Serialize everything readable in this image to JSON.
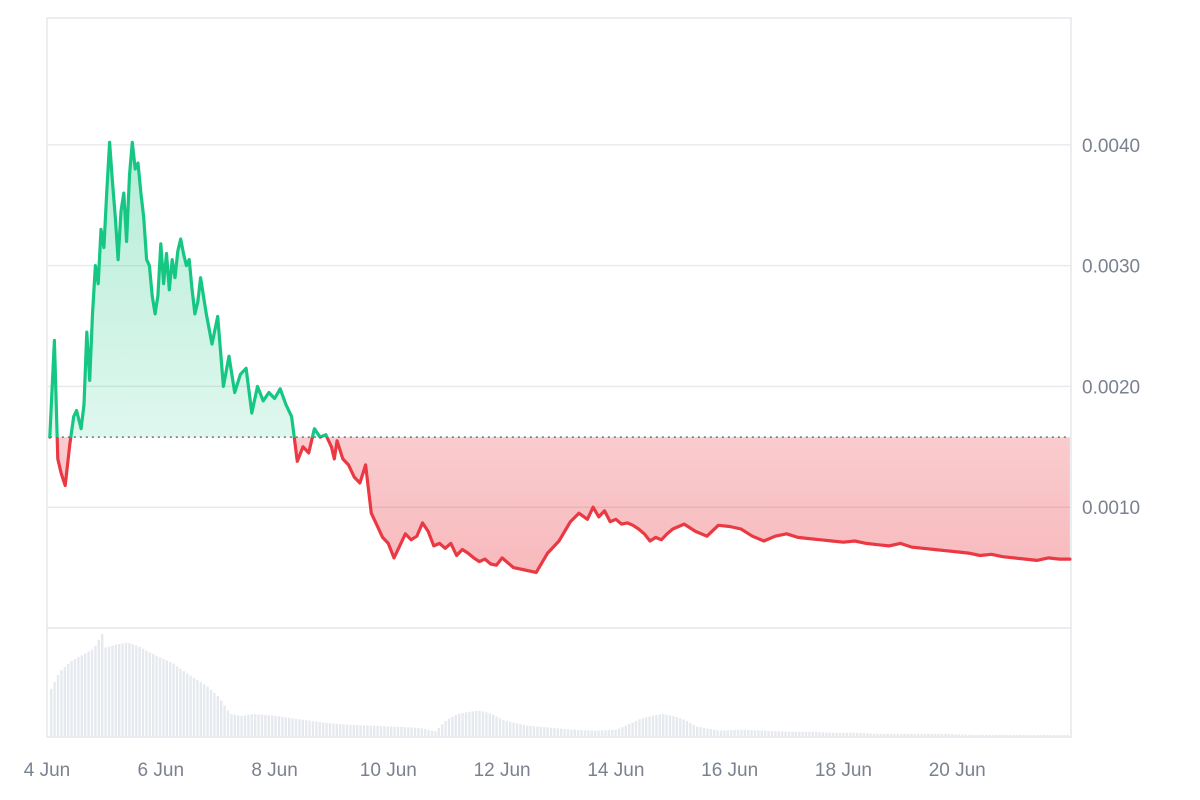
{
  "chart_data": {
    "type": "area",
    "baseline": 0.00158,
    "up_color": "#16c784",
    "down_color": "#ea3943",
    "ylim": [
      0,
      0.00505
    ],
    "y_ticks": [
      0.001,
      0.002,
      0.003,
      0.004
    ],
    "y_tick_labels": [
      "0.0010",
      "0.0020",
      "0.0030",
      "0.0040"
    ],
    "xlim": [
      4.0,
      22.0
    ],
    "x_ticks": [
      4,
      6,
      8,
      10,
      12,
      14,
      16,
      18,
      20
    ],
    "x_tick_labels": [
      "4 Jun",
      "6 Jun",
      "8 Jun",
      "10 Jun",
      "12 Jun",
      "14 Jun",
      "16 Jun",
      "18 Jun",
      "20 Jun"
    ],
    "price_series": {
      "x": [
        4.05,
        4.13,
        4.19,
        4.25,
        4.32,
        4.4,
        4.47,
        4.52,
        4.6,
        4.65,
        4.7,
        4.75,
        4.8,
        4.85,
        4.9,
        4.95,
        5.0,
        5.05,
        5.1,
        5.15,
        5.2,
        5.25,
        5.3,
        5.35,
        5.4,
        5.45,
        5.5,
        5.55,
        5.6,
        5.65,
        5.7,
        5.75,
        5.8,
        5.85,
        5.9,
        5.95,
        6.0,
        6.05,
        6.1,
        6.15,
        6.2,
        6.25,
        6.3,
        6.35,
        6.4,
        6.45,
        6.5,
        6.55,
        6.6,
        6.65,
        6.7,
        6.75,
        6.8,
        6.9,
        7.0,
        7.1,
        7.2,
        7.3,
        7.4,
        7.5,
        7.6,
        7.7,
        7.8,
        7.9,
        8.0,
        8.1,
        8.2,
        8.3,
        8.4,
        8.5,
        8.6,
        8.7,
        8.8,
        8.9,
        9.0,
        9.05,
        9.1,
        9.2,
        9.3,
        9.4,
        9.5,
        9.6,
        9.7,
        9.8,
        9.9,
        10.0,
        10.1,
        10.2,
        10.3,
        10.4,
        10.5,
        10.6,
        10.7,
        10.8,
        10.9,
        11.0,
        11.1,
        11.2,
        11.3,
        11.4,
        11.5,
        11.6,
        11.7,
        11.8,
        11.9,
        12.0,
        12.2,
        12.4,
        12.6,
        12.8,
        13.0,
        13.2,
        13.35,
        13.5,
        13.6,
        13.7,
        13.8,
        13.9,
        14.0,
        14.1,
        14.2,
        14.3,
        14.4,
        14.5,
        14.6,
        14.7,
        14.8,
        14.9,
        15.0,
        15.2,
        15.4,
        15.6,
        15.8,
        16.0,
        16.2,
        16.4,
        16.6,
        16.8,
        17.0,
        17.2,
        17.4,
        17.6,
        17.8,
        18.0,
        18.2,
        18.4,
        18.6,
        18.8,
        19.0,
        19.2,
        19.4,
        19.6,
        19.8,
        20.0,
        20.2,
        20.4,
        20.6,
        20.8,
        21.0,
        21.2,
        21.4,
        21.6,
        21.8,
        21.98
      ],
      "y": [
        0.00158,
        0.00238,
        0.0014,
        0.00128,
        0.00118,
        0.00152,
        0.00175,
        0.0018,
        0.00165,
        0.00185,
        0.00245,
        0.00205,
        0.0026,
        0.003,
        0.00285,
        0.0033,
        0.00315,
        0.0036,
        0.00402,
        0.0037,
        0.0034,
        0.00305,
        0.00345,
        0.0036,
        0.0032,
        0.00375,
        0.00402,
        0.0038,
        0.00385,
        0.0036,
        0.0034,
        0.00305,
        0.003,
        0.00275,
        0.0026,
        0.00275,
        0.00318,
        0.00285,
        0.0031,
        0.0028,
        0.00305,
        0.0029,
        0.00312,
        0.00322,
        0.0031,
        0.003,
        0.00305,
        0.0028,
        0.0026,
        0.0027,
        0.0029,
        0.00275,
        0.0026,
        0.00235,
        0.00258,
        0.002,
        0.00225,
        0.00195,
        0.0021,
        0.00215,
        0.00178,
        0.002,
        0.00188,
        0.00195,
        0.0019,
        0.00198,
        0.00185,
        0.00175,
        0.00138,
        0.0015,
        0.00145,
        0.00165,
        0.00158,
        0.0016,
        0.0015,
        0.0014,
        0.00155,
        0.0014,
        0.00135,
        0.00125,
        0.0012,
        0.00135,
        0.00095,
        0.00085,
        0.00075,
        0.0007,
        0.00058,
        0.00068,
        0.00078,
        0.00073,
        0.00076,
        0.00087,
        0.0008,
        0.00068,
        0.0007,
        0.00066,
        0.0007,
        0.0006,
        0.00065,
        0.00062,
        0.00058,
        0.00055,
        0.00057,
        0.00053,
        0.00052,
        0.00058,
        0.0005,
        0.00048,
        0.00046,
        0.00062,
        0.00072,
        0.00088,
        0.00095,
        0.0009,
        0.001,
        0.00092,
        0.00097,
        0.00088,
        0.0009,
        0.00086,
        0.00087,
        0.00085,
        0.00082,
        0.00078,
        0.00072,
        0.00075,
        0.00073,
        0.00078,
        0.00082,
        0.00086,
        0.0008,
        0.00076,
        0.00085,
        0.00084,
        0.00082,
        0.00076,
        0.00072,
        0.00076,
        0.00078,
        0.00075,
        0.00074,
        0.00073,
        0.00072,
        0.00071,
        0.00072,
        0.0007,
        0.00069,
        0.00068,
        0.0007,
        0.00067,
        0.00066,
        0.00065,
        0.00064,
        0.00063,
        0.00062,
        0.0006,
        0.00061,
        0.00059,
        0.00058,
        0.00057,
        0.00056,
        0.00058,
        0.00057,
        0.00057
      ]
    },
    "volume_series": {
      "x": [
        4.0,
        4.2,
        4.4,
        4.6,
        4.8,
        4.95,
        5.0,
        5.2,
        5.4,
        5.6,
        5.8,
        6.0,
        6.2,
        6.4,
        6.6,
        6.8,
        7.0,
        7.2,
        7.4,
        7.6,
        8.0,
        8.4,
        8.8,
        9.2,
        9.6,
        10.0,
        10.4,
        10.6,
        10.8,
        11.0,
        11.2,
        11.4,
        11.6,
        11.8,
        12.0,
        12.4,
        12.8,
        13.2,
        13.6,
        14.0,
        14.2,
        14.4,
        14.6,
        14.8,
        15.0,
        15.2,
        15.4,
        15.8,
        16.2,
        16.6,
        17.0,
        17.4,
        17.8,
        18.2,
        18.6,
        19.0,
        19.4,
        19.8,
        20.2,
        20.6,
        21.0,
        21.4,
        21.8,
        22.0
      ],
      "y": [
        40,
        62,
        72,
        78,
        84,
        98,
        85,
        88,
        90,
        86,
        80,
        75,
        70,
        62,
        55,
        48,
        38,
        22,
        20,
        22,
        20,
        17,
        14,
        12,
        11,
        10,
        9,
        8,
        5,
        16,
        22,
        24,
        25,
        22,
        16,
        11,
        9,
        7,
        6,
        7,
        12,
        17,
        20,
        22,
        20,
        16,
        10,
        6,
        7,
        6,
        5,
        5,
        4,
        4,
        3,
        3,
        3,
        3,
        2,
        2,
        2,
        2,
        2,
        2
      ]
    }
  }
}
